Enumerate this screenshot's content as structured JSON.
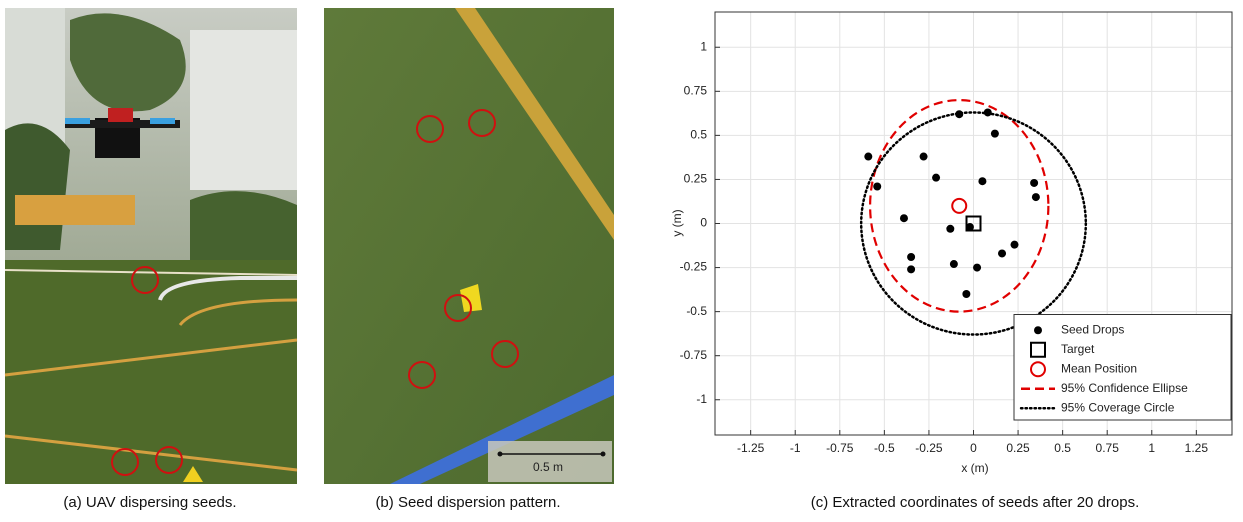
{
  "panels": [
    {
      "caption": "(a) UAV dispersing seeds."
    },
    {
      "caption": "(b) Seed dispersion pattern.",
      "scale_label": "0.5 m"
    }
  ],
  "chart_data": {
    "type": "scatter",
    "caption": "(c) Extracted coordinates of seeds after 20 drops.",
    "xlabel": "x (m)",
    "ylabel": "y (m)",
    "xlim": [
      -1.45,
      1.45
    ],
    "ylim": [
      -1.2,
      1.2
    ],
    "xticks": [
      -1.25,
      -1,
      -0.75,
      -0.5,
      -0.25,
      0,
      0.25,
      0.5,
      0.75,
      1,
      1.25
    ],
    "yticks": [
      -1,
      -0.75,
      -0.5,
      -0.25,
      0,
      0.25,
      0.5,
      0.75,
      1
    ],
    "grid": true,
    "legend": "lower right",
    "series": [
      {
        "name": "Seed Drops",
        "marker": "dot",
        "color": "#000000",
        "x": [
          -0.08,
          0.08,
          0.12,
          -0.59,
          -0.28,
          -0.54,
          -0.21,
          0.05,
          0.34,
          0.35,
          -0.39,
          -0.13,
          -0.02,
          0.16,
          0.23,
          -0.35,
          -0.35,
          -0.11,
          0.02,
          -0.04
        ],
        "y": [
          0.62,
          0.63,
          0.51,
          0.38,
          0.38,
          0.21,
          0.26,
          0.24,
          0.23,
          0.15,
          0.03,
          -0.03,
          -0.02,
          -0.17,
          -0.12,
          -0.19,
          -0.26,
          -0.23,
          -0.25,
          -0.4
        ]
      },
      {
        "name": "Target",
        "marker": "square",
        "color": "#000000",
        "x": [
          0
        ],
        "y": [
          0
        ]
      },
      {
        "name": "Mean Position",
        "marker": "circle",
        "color": "#e00000",
        "x": [
          -0.08
        ],
        "y": [
          0.1
        ]
      },
      {
        "name": "95% Confidence Ellipse",
        "marker": "dashed-ellipse",
        "color": "#e00000",
        "center": [
          -0.08,
          0.1
        ],
        "radii": [
          0.5,
          0.6
        ]
      },
      {
        "name": "95% Coverage Circle",
        "marker": "dotted-circle",
        "color": "#000000",
        "center": [
          0,
          0
        ],
        "radius": 0.63
      }
    ]
  }
}
